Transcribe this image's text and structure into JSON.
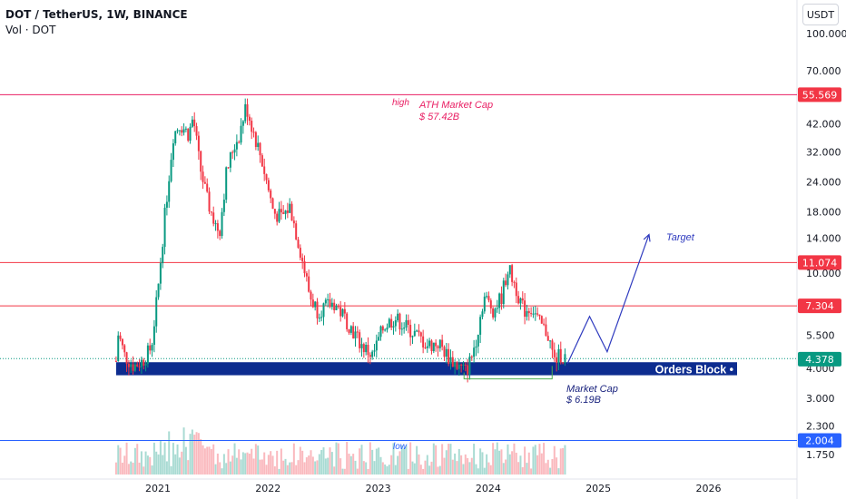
{
  "header": {
    "title": "DOT / TetherUS, 1W, BINANCE",
    "volume_label": "Vol · DOT",
    "currency_button": "USDT"
  },
  "chart_data": {
    "type": "candlestick",
    "symbol": "DOT / TetherUS",
    "interval": "1W",
    "exchange": "BINANCE",
    "price_axis_ticks": [
      "100.000",
      "70.000",
      "42.000",
      "32.000",
      "24.000",
      "18.000",
      "14.000",
      "10.000",
      "5.500",
      "4.000",
      "3.000",
      "2.300",
      "1.750"
    ],
    "time_axis_ticks": [
      "2021",
      "2022",
      "2023",
      "2024",
      "2025",
      "2026"
    ],
    "ylim": [
      1.6,
      120
    ],
    "y_scale": "log",
    "price_tags": [
      {
        "value": "55.569",
        "color": "#f23645"
      },
      {
        "value": "11.074",
        "color": "#f23645"
      },
      {
        "value": "7.304",
        "color": "#f23645"
      },
      {
        "value": "4.378",
        "color": "#089981"
      },
      {
        "value": "2.004",
        "color": "#2962ff"
      }
    ],
    "horizontal_lines": [
      {
        "price": 55.569,
        "color": "#e91e63"
      },
      {
        "price": 11.074,
        "color": "#f23645"
      },
      {
        "price": 7.304,
        "color": "#f23645"
      },
      {
        "price": 2.004,
        "color": "#2962ff"
      }
    ],
    "zone": {
      "label": "Orders Block",
      "price_low": 3.75,
      "price_high": 4.25,
      "from": 2020.62,
      "color": "#0d2c8f"
    },
    "annotations": {
      "high": "high",
      "ath_market_cap": [
        "ATH Market Cap",
        "$ 57.42B"
      ],
      "market_cap": [
        "Market Cap",
        "$ 6.19B"
      ],
      "target": "Target",
      "low": "low"
    },
    "projection_path": [
      {
        "t": 2024.72,
        "price": 4.2
      },
      {
        "t": 2024.92,
        "price": 6.6
      },
      {
        "t": 2025.08,
        "price": 4.7
      },
      {
        "t": 2025.46,
        "price": 14.5
      }
    ],
    "price_path": [
      {
        "t": 2020.62,
        "price": 4.3
      },
      {
        "t": 2020.64,
        "price": 5.6
      },
      {
        "t": 2020.7,
        "price": 4.5
      },
      {
        "t": 2020.78,
        "price": 4.1
      },
      {
        "t": 2020.86,
        "price": 4.3
      },
      {
        "t": 2020.94,
        "price": 4.9
      },
      {
        "t": 2021.0,
        "price": 8.5
      },
      {
        "t": 2021.06,
        "price": 17
      },
      {
        "t": 2021.14,
        "price": 38
      },
      {
        "t": 2021.2,
        "price": 42
      },
      {
        "t": 2021.28,
        "price": 38
      },
      {
        "t": 2021.32,
        "price": 45
      },
      {
        "t": 2021.38,
        "price": 28
      },
      {
        "t": 2021.45,
        "price": 20
      },
      {
        "t": 2021.52,
        "price": 16
      },
      {
        "t": 2021.56,
        "price": 15
      },
      {
        "t": 2021.62,
        "price": 26
      },
      {
        "t": 2021.68,
        "price": 33
      },
      {
        "t": 2021.74,
        "price": 38
      },
      {
        "t": 2021.8,
        "price": 50
      },
      {
        "t": 2021.86,
        "price": 40
      },
      {
        "t": 2021.94,
        "price": 30
      },
      {
        "t": 2022.05,
        "price": 18
      },
      {
        "t": 2022.12,
        "price": 17
      },
      {
        "t": 2022.2,
        "price": 19
      },
      {
        "t": 2022.3,
        "price": 12
      },
      {
        "t": 2022.38,
        "price": 8
      },
      {
        "t": 2022.45,
        "price": 7
      },
      {
        "t": 2022.6,
        "price": 7.5
      },
      {
        "t": 2022.7,
        "price": 6.5
      },
      {
        "t": 2022.85,
        "price": 5
      },
      {
        "t": 2022.95,
        "price": 4.5
      },
      {
        "t": 2023.05,
        "price": 6
      },
      {
        "t": 2023.15,
        "price": 6.5
      },
      {
        "t": 2023.25,
        "price": 6
      },
      {
        "t": 2023.35,
        "price": 5.5
      },
      {
        "t": 2023.45,
        "price": 5.0
      },
      {
        "t": 2023.55,
        "price": 5.1
      },
      {
        "t": 2023.65,
        "price": 4.4
      },
      {
        "t": 2023.72,
        "price": 4.1
      },
      {
        "t": 2023.8,
        "price": 3.9
      },
      {
        "t": 2023.85,
        "price": 4.5
      },
      {
        "t": 2023.9,
        "price": 5.6
      },
      {
        "t": 2023.96,
        "price": 8.0
      },
      {
        "t": 2024.05,
        "price": 7.0
      },
      {
        "t": 2024.12,
        "price": 8.0
      },
      {
        "t": 2024.18,
        "price": 10.5
      },
      {
        "t": 2024.24,
        "price": 9.0
      },
      {
        "t": 2024.32,
        "price": 7.0
      },
      {
        "t": 2024.4,
        "price": 7.2
      },
      {
        "t": 2024.46,
        "price": 6.2
      },
      {
        "t": 2024.54,
        "price": 5.6
      },
      {
        "t": 2024.6,
        "price": 4.3
      },
      {
        "t": 2024.66,
        "price": 4.6
      },
      {
        "t": 2024.7,
        "price": 4.4
      }
    ]
  }
}
